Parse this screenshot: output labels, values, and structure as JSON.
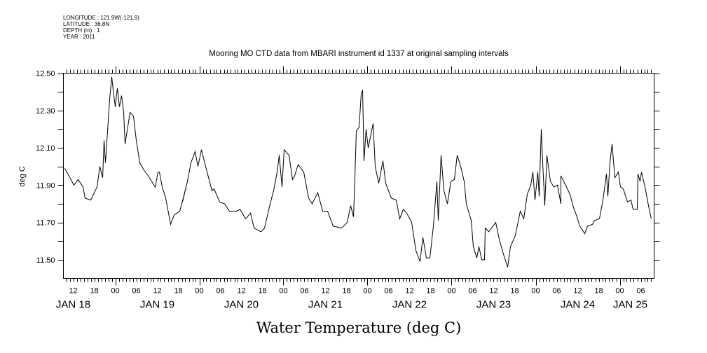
{
  "header": {
    "meta_lines": [
      "LONGITUDE : 121.9W(-121.9)",
      "LATITUDE : 36.8N",
      "DEPTH (m) : 1",
      "YEAR : 2011"
    ]
  },
  "chart_data": {
    "type": "line",
    "title": "Mooring MO CTD data from MBARI instrument id 1337 at original sampling intervals",
    "xlabel": "Water Temperature (deg C)",
    "ylabel": "deg C",
    "x_units": "hours since JAN 18 00:00, 2011",
    "xlim": [
      9.2,
      177.8
    ],
    "ylim": [
      11.4,
      12.5
    ],
    "y_ticks": [
      11.5,
      11.6,
      11.7,
      11.8,
      11.9,
      12.0,
      12.1,
      12.2,
      12.3,
      12.4,
      12.5
    ],
    "y_tick_labels": [
      {
        "value": 12.5,
        "label": "12.50"
      },
      {
        "value": 12.3,
        "label": "12.30"
      },
      {
        "value": 12.1,
        "label": "12.10"
      },
      {
        "value": 11.9,
        "label": "11.90"
      },
      {
        "value": 11.7,
        "label": "11.70"
      },
      {
        "value": 11.5,
        "label": "11.50"
      }
    ],
    "x_hour_labels": [
      {
        "hour": 12,
        "label": "12"
      },
      {
        "hour": 18,
        "label": "18"
      },
      {
        "hour": 24,
        "label": "00"
      },
      {
        "hour": 30,
        "label": "06"
      },
      {
        "hour": 36,
        "label": "12"
      },
      {
        "hour": 42,
        "label": "18"
      },
      {
        "hour": 48,
        "label": "00"
      },
      {
        "hour": 54,
        "label": "06"
      },
      {
        "hour": 60,
        "label": "12"
      },
      {
        "hour": 66,
        "label": "18"
      },
      {
        "hour": 72,
        "label": "00"
      },
      {
        "hour": 78,
        "label": "06"
      },
      {
        "hour": 84,
        "label": "12"
      },
      {
        "hour": 90,
        "label": "18"
      },
      {
        "hour": 96,
        "label": "00"
      },
      {
        "hour": 102,
        "label": "06"
      },
      {
        "hour": 108,
        "label": "12"
      },
      {
        "hour": 114,
        "label": "18"
      },
      {
        "hour": 120,
        "label": "00"
      },
      {
        "hour": 126,
        "label": "06"
      },
      {
        "hour": 132,
        "label": "12"
      },
      {
        "hour": 138,
        "label": "18"
      },
      {
        "hour": 144,
        "label": "00"
      },
      {
        "hour": 150,
        "label": "06"
      },
      {
        "hour": 156,
        "label": "12"
      },
      {
        "hour": 162,
        "label": "18"
      },
      {
        "hour": 168,
        "label": "00"
      },
      {
        "hour": 174,
        "label": "06"
      }
    ],
    "x_day_labels": [
      {
        "hour": 12,
        "label": "JAN 18"
      },
      {
        "hour": 36,
        "label": "JAN 19"
      },
      {
        "hour": 60,
        "label": "JAN 20"
      },
      {
        "hour": 84,
        "label": "JAN 21"
      },
      {
        "hour": 108,
        "label": "JAN 22"
      },
      {
        "hour": 132,
        "label": "JAN 23"
      },
      {
        "hour": 156,
        "label": "JAN 24"
      },
      {
        "hour": 171,
        "label": "JAN 25"
      }
    ],
    "grid": false,
    "series": [
      {
        "name": "Water Temperature",
        "points": [
          [
            9.6,
            11.99
          ],
          [
            12.2,
            11.9
          ],
          [
            13.4,
            11.93
          ],
          [
            14.8,
            11.89
          ],
          [
            15.4,
            11.83
          ],
          [
            17.0,
            11.82
          ],
          [
            18.8,
            11.89
          ],
          [
            19.6,
            12.0
          ],
          [
            20.4,
            11.94
          ],
          [
            20.8,
            12.14
          ],
          [
            21.2,
            12.02
          ],
          [
            21.8,
            12.19
          ],
          [
            22.4,
            12.36
          ],
          [
            23.0,
            12.48
          ],
          [
            23.4,
            12.41
          ],
          [
            24.0,
            12.32
          ],
          [
            24.6,
            12.42
          ],
          [
            25.2,
            12.32
          ],
          [
            25.8,
            12.38
          ],
          [
            26.4,
            12.29
          ],
          [
            26.8,
            12.12
          ],
          [
            27.8,
            12.24
          ],
          [
            28.2,
            12.29
          ],
          [
            29.2,
            12.27
          ],
          [
            30.0,
            12.14
          ],
          [
            31.0,
            12.02
          ],
          [
            32.2,
            11.98
          ],
          [
            33.4,
            11.95
          ],
          [
            34.4,
            11.92
          ],
          [
            35.4,
            11.89
          ],
          [
            36.2,
            11.97
          ],
          [
            36.6,
            11.97
          ],
          [
            37.4,
            11.89
          ],
          [
            38.4,
            11.83
          ],
          [
            39.8,
            11.69
          ],
          [
            40.8,
            11.74
          ],
          [
            42.4,
            11.76
          ],
          [
            43.4,
            11.83
          ],
          [
            44.2,
            11.89
          ],
          [
            43.2,
            11.81
          ],
          [
            44.6,
            11.92
          ],
          [
            45.6,
            12.02
          ],
          [
            46.8,
            12.08
          ],
          [
            47.6,
            12.0
          ],
          [
            48.6,
            12.09
          ],
          [
            49.8,
            12.0
          ],
          [
            51.6,
            11.87
          ],
          [
            52.2,
            11.88
          ],
          [
            53.8,
            11.81
          ],
          [
            55.2,
            11.8
          ],
          [
            56.6,
            11.76
          ],
          [
            58.6,
            11.76
          ],
          [
            59.6,
            11.77
          ],
          [
            61.2,
            11.72
          ],
          [
            62.6,
            11.75
          ],
          [
            63.6,
            11.67
          ],
          [
            65.6,
            11.65
          ],
          [
            66.6,
            11.67
          ],
          [
            68.2,
            11.8
          ],
          [
            69.2,
            11.87
          ],
          [
            70.2,
            11.97
          ],
          [
            70.8,
            12.06
          ],
          [
            71.6,
            11.89
          ],
          [
            72.2,
            12.09
          ],
          [
            73.6,
            12.06
          ],
          [
            74.6,
            11.93
          ],
          [
            75.2,
            11.95
          ],
          [
            76.2,
            12.01
          ],
          [
            77.8,
            11.97
          ],
          [
            79.2,
            11.83
          ],
          [
            80.2,
            11.8
          ],
          [
            81.8,
            11.86
          ],
          [
            83.2,
            11.76
          ],
          [
            84.6,
            11.76
          ],
          [
            86.2,
            11.68
          ],
          [
            88.6,
            11.67
          ],
          [
            90.2,
            11.7
          ],
          [
            91.2,
            11.79
          ],
          [
            92.0,
            11.73
          ],
          [
            92.4,
            11.94
          ],
          [
            92.8,
            12.19
          ],
          [
            93.6,
            12.21
          ],
          [
            94.2,
            12.39
          ],
          [
            94.6,
            12.41
          ],
          [
            95.0,
            12.03
          ],
          [
            95.6,
            12.2
          ],
          [
            96.2,
            12.1
          ],
          [
            97.6,
            12.23
          ],
          [
            98.2,
            12.0
          ],
          [
            99.2,
            11.91
          ],
          [
            100.4,
            12.03
          ],
          [
            101.2,
            11.91
          ],
          [
            102.8,
            11.83
          ],
          [
            104.2,
            11.82
          ],
          [
            105.2,
            11.72
          ],
          [
            106.2,
            11.77
          ],
          [
            107.2,
            11.75
          ],
          [
            108.6,
            11.7
          ],
          [
            109.8,
            11.55
          ],
          [
            111.0,
            11.49
          ],
          [
            111.8,
            11.62
          ],
          [
            112.8,
            11.51
          ],
          [
            113.8,
            11.51
          ],
          [
            114.8,
            11.68
          ],
          [
            115.8,
            11.92
          ],
          [
            116.2,
            11.71
          ],
          [
            117.0,
            12.06
          ],
          [
            117.8,
            11.87
          ],
          [
            118.8,
            11.8
          ],
          [
            119.8,
            11.92
          ],
          [
            120.8,
            11.93
          ],
          [
            121.6,
            12.06
          ],
          [
            122.6,
            12.0
          ],
          [
            123.6,
            11.92
          ],
          [
            124.2,
            11.8
          ],
          [
            125.6,
            11.71
          ],
          [
            126.2,
            11.57
          ],
          [
            127.2,
            11.51
          ],
          [
            127.8,
            11.57
          ],
          [
            128.6,
            11.5
          ],
          [
            129.4,
            11.5
          ],
          [
            129.6,
            11.67
          ],
          [
            130.6,
            11.65
          ],
          [
            132.6,
            11.7
          ],
          [
            133.6,
            11.61
          ],
          [
            134.8,
            11.53
          ],
          [
            136.0,
            11.46
          ],
          [
            136.8,
            11.57
          ],
          [
            138.2,
            11.63
          ],
          [
            139.6,
            11.76
          ],
          [
            140.6,
            11.72
          ],
          [
            141.6,
            11.85
          ],
          [
            142.6,
            11.9
          ],
          [
            143.2,
            11.97
          ],
          [
            143.8,
            11.82
          ],
          [
            144.6,
            11.97
          ],
          [
            145.0,
            11.84
          ],
          [
            145.6,
            12.2
          ],
          [
            146.0,
            12.02
          ],
          [
            146.6,
            11.79
          ],
          [
            147.2,
            12.06
          ],
          [
            148.2,
            11.92
          ],
          [
            149.2,
            11.89
          ],
          [
            150.2,
            11.9
          ],
          [
            151.2,
            11.8
          ],
          [
            151.2,
            11.95
          ],
          [
            152.8,
            11.89
          ],
          [
            153.8,
            11.85
          ],
          [
            154.8,
            11.78
          ],
          [
            155.6,
            11.74
          ],
          [
            156.6,
            11.68
          ],
          [
            158.0,
            11.64
          ],
          [
            158.8,
            11.68
          ],
          [
            160.2,
            11.69
          ],
          [
            160.8,
            11.71
          ],
          [
            162.2,
            11.72
          ],
          [
            163.2,
            11.82
          ],
          [
            164.2,
            11.96
          ],
          [
            164.6,
            11.84
          ],
          [
            165.2,
            12.02
          ],
          [
            165.8,
            12.12
          ],
          [
            166.6,
            11.94
          ],
          [
            167.6,
            11.97
          ],
          [
            168.2,
            11.89
          ],
          [
            169.0,
            11.88
          ],
          [
            170.2,
            11.81
          ],
          [
            171.2,
            11.82
          ],
          [
            171.8,
            11.77
          ],
          [
            173.0,
            11.77
          ],
          [
            173.2,
            11.96
          ],
          [
            173.8,
            11.92
          ],
          [
            174.2,
            11.97
          ],
          [
            175.2,
            11.89
          ],
          [
            176.2,
            11.79
          ],
          [
            177.0,
            11.72
          ]
        ]
      }
    ]
  }
}
